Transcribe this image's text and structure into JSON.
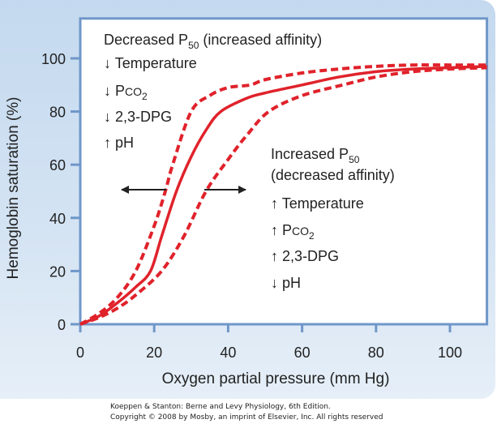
{
  "chart_data": {
    "type": "line",
    "xlabel": "Oxygen partial pressure (mm Hg)",
    "ylabel": "Hemoglobin saturation (%)",
    "xlim": [
      0,
      110
    ],
    "ylim": [
      0,
      115
    ],
    "xticks": [
      0,
      20,
      40,
      60,
      80,
      100
    ],
    "yticks": [
      0,
      20,
      40,
      60,
      80,
      100
    ],
    "grid": false,
    "colors": {
      "curve": "#e0222b",
      "frame": "#6f97c9",
      "arrow": "#222222",
      "background": "#cfe0f2"
    },
    "series": [
      {
        "style": "dashed",
        "x": [
          0,
          5,
          10,
          15,
          20,
          23,
          25,
          30,
          35,
          40,
          46,
          50,
          60,
          70,
          80,
          90,
          100,
          110
        ],
        "y": [
          0,
          4,
          10,
          20,
          37,
          50,
          60,
          80,
          86,
          89,
          90,
          92,
          94.5,
          96,
          97,
          97.5,
          97.5,
          97.5
        ]
      },
      {
        "style": "solid",
        "x": [
          0,
          5,
          10,
          15,
          19,
          22,
          26,
          30,
          34,
          38,
          45,
          50,
          60,
          70,
          80,
          90,
          100,
          110
        ],
        "y": [
          0,
          3,
          8,
          14,
          20,
          33,
          50,
          63,
          73,
          80,
          85,
          87,
          90,
          93,
          95,
          96,
          96.5,
          97
        ]
      },
      {
        "style": "dashed",
        "x": [
          0,
          5,
          10,
          15,
          22,
          28,
          34,
          40,
          45,
          51,
          60,
          71,
          80,
          90,
          100,
          110
        ],
        "y": [
          0,
          2.5,
          6,
          11,
          20,
          33,
          50,
          62,
          71,
          80,
          86,
          90,
          93,
          95,
          96,
          96.5
        ]
      }
    ],
    "annotations": {
      "left": {
        "title": "Decreased P",
        "title_sub": "50",
        "title_rest": " (increased affinity)",
        "items": [
          {
            "arrow": "↓",
            "text": "Temperature"
          },
          {
            "arrow": "↓",
            "text": "P",
            "small": "CO",
            "sub": "2"
          },
          {
            "arrow": "↓",
            "text": "2,3-DPG"
          },
          {
            "arrow": "↑",
            "text": "pH"
          }
        ]
      },
      "right": {
        "title": "Increased P",
        "title_sub": "50",
        "title_line2": "(decreased affinity)",
        "items": [
          {
            "arrow": "↑",
            "text": "Temperature"
          },
          {
            "arrow": "↑",
            "text": "P",
            "small": "CO",
            "sub": "2"
          },
          {
            "arrow": "↑",
            "text": "2,3-DPG"
          },
          {
            "arrow": "↓",
            "text": "pH"
          }
        ]
      },
      "shift_arrows": [
        "left",
        "right"
      ]
    }
  },
  "caption": {
    "line1": "Koeppen & Stanton: Berne and Levy Physiology, 6th Edition.",
    "line2": "Copyright © 2008 by Mosby, an imprint of Elsevier, Inc. All rights reserved"
  }
}
